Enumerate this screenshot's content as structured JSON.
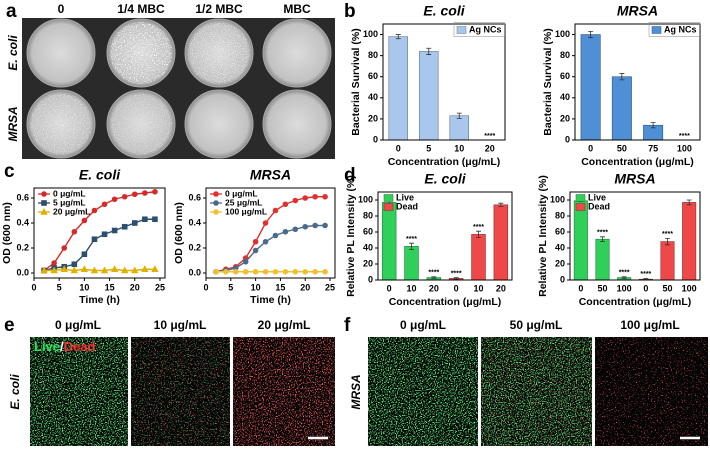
{
  "panel_labels": [
    "a",
    "b",
    "c",
    "d",
    "e",
    "f"
  ],
  "plates": {
    "columns": [
      "0",
      "1/4 MBC",
      "1/2 MBC",
      "MBC"
    ],
    "rows": [
      "E. coli",
      "MRSA"
    ]
  },
  "micrographs_e": {
    "legend_live": "Live",
    "legend_separator": "/",
    "legend_dead": "Dead",
    "columns": [
      "0 μg/mL",
      "10 μg/mL",
      "20 μg/mL"
    ],
    "row": "E. coli"
  },
  "micrographs_f": {
    "columns": [
      "0 μg/mL",
      "50 μg/mL",
      "100 μg/mL"
    ],
    "row": "MRSA"
  },
  "chart_data": [
    {
      "type": "bar",
      "title": "E. coli",
      "xlabel": "Concentration (μg/mL)",
      "ylabel": "Bacterial Survival (%)",
      "categories": [
        "0",
        "5",
        "10",
        "20"
      ],
      "series": [
        {
          "name": "Ag NCs",
          "color": "#a9c6ec",
          "values": [
            98,
            84,
            23,
            0
          ],
          "errors": [
            2,
            3,
            2.5,
            null
          ],
          "significance": [
            null,
            null,
            null,
            "****"
          ]
        }
      ],
      "ylim": [
        0,
        110
      ],
      "yticks": [
        0,
        20,
        40,
        60,
        80,
        100
      ],
      "legend": "upper right"
    },
    {
      "type": "bar",
      "title": "MRSA",
      "xlabel": "Concentration (μg/mL)",
      "ylabel": "Bacterial Survival (%)",
      "categories": [
        "0",
        "50",
        "75",
        "100"
      ],
      "series": [
        {
          "name": "Ag NCs",
          "color": "#4f8fd6",
          "values": [
            100,
            60,
            14,
            0
          ],
          "errors": [
            3,
            3,
            2.5,
            null
          ],
          "significance": [
            null,
            null,
            null,
            "****"
          ]
        }
      ],
      "ylim": [
        0,
        110
      ],
      "yticks": [
        0,
        20,
        40,
        60,
        80,
        100
      ],
      "legend": "upper right"
    },
    {
      "type": "line",
      "title": "E. coli",
      "xlabel": "Time (h)",
      "ylabel": "OD (600 nm)",
      "x": [
        2,
        4,
        6,
        8,
        10,
        12,
        14,
        16,
        18,
        20,
        22,
        24
      ],
      "series": [
        {
          "name": "0 μg/mL",
          "color": "#d42a2a",
          "marker": "circle",
          "values": [
            0.02,
            0.08,
            0.2,
            0.33,
            0.42,
            0.5,
            0.55,
            0.59,
            0.61,
            0.63,
            0.64,
            0.65
          ]
        },
        {
          "name": "5 μg/mL",
          "color": "#2e4e6e",
          "marker": "square",
          "values": [
            0.02,
            0.04,
            0.05,
            0.07,
            0.15,
            0.27,
            0.31,
            0.34,
            0.37,
            0.4,
            0.43,
            0.43
          ]
        },
        {
          "name": "20 μg/mL",
          "color": "#e0b000",
          "marker": "triangle",
          "values": [
            0.02,
            0.02,
            0.03,
            0.02,
            0.03,
            0.02,
            0.02,
            0.03,
            0.02,
            0.02,
            0.03,
            0.03
          ]
        }
      ],
      "xlim": [
        0,
        26
      ],
      "xticks": [
        0,
        5,
        10,
        15,
        20,
        25
      ],
      "ylim": [
        -0.04,
        0.68
      ],
      "yticks": [
        {
          "value": 0,
          "label": "0.0"
        },
        0.2,
        0.4,
        0.6
      ],
      "legend": "upper left"
    },
    {
      "type": "line",
      "title": "MRSA",
      "xlabel": "Time (h)",
      "ylabel": "OD (600 nm)",
      "x": [
        2,
        4,
        6,
        8,
        10,
        12,
        14,
        16,
        18,
        20,
        22,
        24
      ],
      "series": [
        {
          "name": "0 μg/mL",
          "color": "#e03030",
          "marker": "circle",
          "values": [
            0.01,
            0.03,
            0.05,
            0.12,
            0.25,
            0.4,
            0.5,
            0.55,
            0.58,
            0.6,
            0.61,
            0.61
          ]
        },
        {
          "name": "25 μg/mL",
          "color": "#4a6a8c",
          "marker": "circle",
          "values": [
            0.01,
            0.02,
            0.04,
            0.09,
            0.18,
            0.25,
            0.3,
            0.33,
            0.35,
            0.37,
            0.38,
            0.38
          ]
        },
        {
          "name": "100 μg/mL",
          "color": "#f0c030",
          "marker": "circle",
          "values": [
            0.01,
            0.01,
            0.01,
            0.01,
            0.01,
            0.01,
            0.01,
            0.01,
            0.01,
            0.01,
            0.01,
            0.01
          ]
        }
      ],
      "xlim": [
        0,
        26
      ],
      "xticks": [
        0,
        5,
        10,
        15,
        20,
        25
      ],
      "ylim": [
        -0.04,
        0.68
      ],
      "yticks": [
        {
          "value": 0,
          "label": "0.0"
        },
        0.2,
        0.4,
        0.6
      ],
      "legend": "upper left"
    },
    {
      "type": "bar",
      "title": "E. coli",
      "xlabel": "Concentration (μg/mL)",
      "ylabel": "Relative PL Intensity (%)",
      "categories": [
        "0",
        "10",
        "20",
        "0",
        "10",
        "20"
      ],
      "series": [
        {
          "name": "Live",
          "color": "#2fcf5a",
          "values": [
            97,
            42,
            3,
            null,
            null,
            null
          ],
          "errors": [
            2,
            4,
            1,
            null,
            null,
            null
          ],
          "significance": [
            null,
            "****",
            "****",
            null,
            null,
            null
          ]
        },
        {
          "name": "Dead",
          "color": "#ef4848",
          "values": [
            null,
            null,
            null,
            2,
            57,
            94
          ],
          "errors": [
            null,
            null,
            null,
            1,
            4,
            2
          ],
          "significance": [
            null,
            null,
            null,
            "****",
            "****",
            null
          ]
        }
      ],
      "ylim": [
        0,
        110
      ],
      "yticks": [
        0,
        20,
        40,
        60,
        80,
        100
      ],
      "legend": "upper left"
    },
    {
      "type": "bar",
      "title": "MRSA",
      "xlabel": "Concentration (μg/mL)",
      "ylabel": "Relative PL Intensity (%)",
      "categories": [
        "0",
        "50",
        "100",
        "0",
        "50",
        "100"
      ],
      "series": [
        {
          "name": "Live",
          "color": "#2fcf5a",
          "values": [
            99,
            51,
            3,
            null,
            null,
            null
          ],
          "errors": [
            1,
            3,
            1,
            null,
            null,
            null
          ],
          "significance": [
            null,
            "****",
            "****",
            null,
            null,
            null
          ]
        },
        {
          "name": "Dead",
          "color": "#ef4848",
          "values": [
            null,
            null,
            null,
            1,
            48,
            97
          ],
          "errors": [
            null,
            null,
            null,
            1,
            4,
            3
          ],
          "significance": [
            null,
            null,
            null,
            "****",
            "****",
            null
          ]
        }
      ],
      "ylim": [
        0,
        110
      ],
      "yticks": [
        0,
        20,
        40,
        60,
        80,
        100
      ],
      "legend": "upper left"
    }
  ]
}
